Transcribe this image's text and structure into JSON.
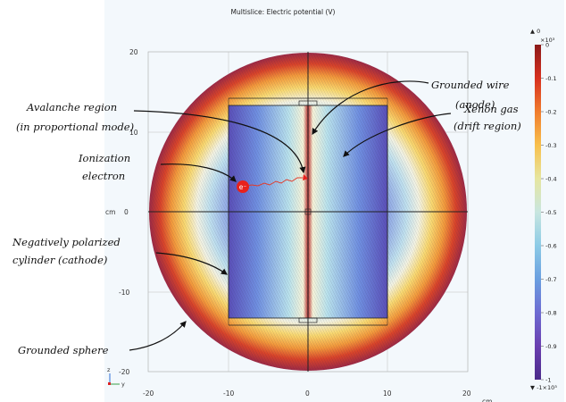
{
  "title": "Multislice: Electric potential (V)",
  "axes": {
    "y_ticks": [
      "20",
      "10",
      "0",
      "-10",
      "-20"
    ],
    "x_ticks": [
      "-20",
      "-10",
      "0",
      "10",
      "20"
    ],
    "y_unit": "cm",
    "x_unit": "cm",
    "triad_z": "z",
    "triad_y": "y"
  },
  "colorbar": {
    "max_label": "0",
    "min_label": "-1",
    "scale_top": "×10³",
    "scale_bottom": "×10³",
    "top_marker": "▲ 0",
    "bottom_marker": "▼ -1×10³",
    "ticks": [
      "0",
      "-0.1",
      "-0.2",
      "-0.3",
      "-0.4",
      "-0.5",
      "-0.6",
      "-0.7",
      "-0.8",
      "-0.9",
      "-1"
    ],
    "colors": [
      "#8b1a1a",
      "#d7301f",
      "#f07c2d",
      "#f8c04c",
      "#e6e6a0",
      "#c8e6e0",
      "#8ccbe6",
      "#6a9fe0",
      "#6d6bd2",
      "#6a3fb0",
      "#4a2a8a"
    ]
  },
  "annotations": {
    "grounded_wire_1": "Grounded wire",
    "grounded_wire_2": "(anode)",
    "xenon_1": "Xenon gas",
    "xenon_2": "(drift region)",
    "avalanche_1": "Avalanche region",
    "avalanche_2": "(in proportional mode)",
    "ionization_1": "Ionization",
    "ionization_2": "electron",
    "cathode_1": "Negatively polarized",
    "cathode_2": "cylinder (cathode)",
    "sphere": "Grounded sphere",
    "electron_symbol": "e⁻"
  }
}
